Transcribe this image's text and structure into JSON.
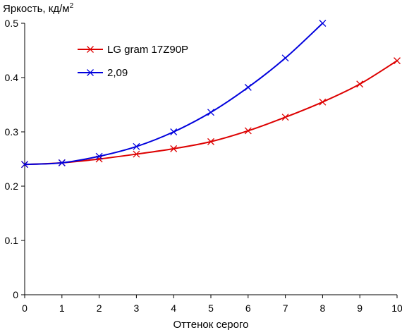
{
  "chart_data": {
    "type": "line",
    "ylabel": "Яркость, кд/м",
    "ylabel_superscript": "2",
    "xlabel": "Оттенок серого",
    "xlim": [
      0,
      10
    ],
    "ylim": [
      0,
      0.5
    ],
    "x_ticks": [
      0,
      1,
      2,
      3,
      4,
      5,
      6,
      7,
      8,
      9,
      10
    ],
    "x_tick_labels": [
      "0",
      "1",
      "2",
      "3",
      "4",
      "5",
      "6",
      "7",
      "8",
      "9",
      "10"
    ],
    "y_ticks": [
      0,
      0.1,
      0.2,
      0.3,
      0.4,
      0.5
    ],
    "y_tick_labels": [
      "0",
      "0.1",
      "0.2",
      "0.3",
      "0.4",
      "0.5"
    ],
    "grid": false,
    "legend_position": "top-left",
    "series": [
      {
        "name": "LG gram 17Z90P",
        "color": "#dd0000",
        "marker": "x",
        "x": [
          0,
          1,
          2,
          3,
          4,
          5,
          6,
          7,
          8,
          9,
          10
        ],
        "y": [
          0.24,
          0.243,
          0.25,
          0.259,
          0.269,
          0.282,
          0.302,
          0.327,
          0.355,
          0.388,
          0.431
        ]
      },
      {
        "name": "2,09",
        "color": "#0000dd",
        "marker": "x",
        "x": [
          0,
          1,
          2,
          3,
          4,
          5,
          6,
          7,
          8
        ],
        "y": [
          0.24,
          0.243,
          0.255,
          0.273,
          0.3,
          0.336,
          0.382,
          0.436,
          0.5
        ]
      }
    ]
  }
}
